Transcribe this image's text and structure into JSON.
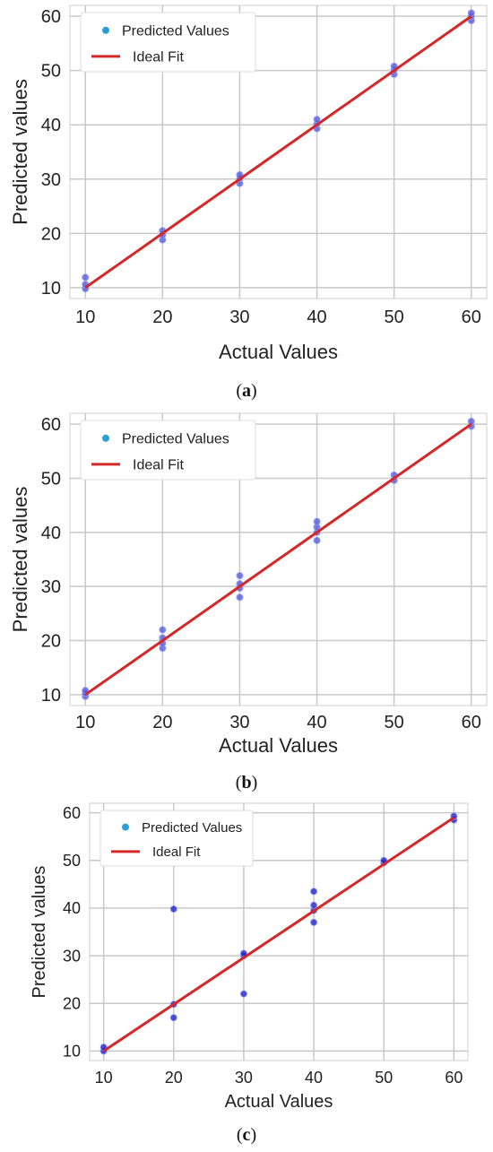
{
  "chart_data": [
    {
      "type": "scatter",
      "panel": "a",
      "caption": "a",
      "xlabel": "Actual Values",
      "ylabel": "Predicted values",
      "xlim": [
        8,
        62
      ],
      "ylim": [
        8,
        62
      ],
      "xticks": [
        10,
        20,
        30,
        40,
        50,
        60
      ],
      "yticks": [
        10,
        20,
        30,
        40,
        50,
        60
      ],
      "grid": true,
      "legend_position": "top-left",
      "series": [
        {
          "name": "Predicted Values",
          "kind": "scatter",
          "color": "#5b5bd6",
          "points": [
            [
              10,
              9.8
            ],
            [
              10,
              10.6
            ],
            [
              10,
              11.9
            ],
            [
              20,
              18.8
            ],
            [
              20,
              19.7
            ],
            [
              20,
              20.5
            ],
            [
              30,
              29.2
            ],
            [
              30,
              30.1
            ],
            [
              30,
              30.8
            ],
            [
              40,
              39.3
            ],
            [
              40,
              40.2
            ],
            [
              40,
              41.0
            ],
            [
              50,
              49.3
            ],
            [
              50,
              50.1
            ],
            [
              50,
              50.8
            ],
            [
              60,
              59.2
            ],
            [
              60,
              60.0
            ],
            [
              60,
              60.6
            ]
          ]
        },
        {
          "name": "Ideal Fit",
          "kind": "line",
          "color": "#d62728",
          "points": [
            [
              10,
              10
            ],
            [
              60,
              60
            ]
          ]
        }
      ]
    },
    {
      "type": "scatter",
      "panel": "b",
      "caption": "b",
      "xlabel": "Actual Values",
      "ylabel": "Predicted values",
      "xlim": [
        8,
        62
      ],
      "ylim": [
        8,
        62
      ],
      "xticks": [
        10,
        20,
        30,
        40,
        50,
        60
      ],
      "yticks": [
        10,
        20,
        30,
        40,
        50,
        60
      ],
      "grid": true,
      "legend_position": "top-left",
      "series": [
        {
          "name": "Predicted Values",
          "kind": "scatter",
          "color": "#5b5bd6",
          "points": [
            [
              10,
              9.7
            ],
            [
              10,
              10.3
            ],
            [
              10,
              10.8
            ],
            [
              20,
              18.6
            ],
            [
              20,
              19.5
            ],
            [
              20,
              20.5
            ],
            [
              20,
              22.0
            ],
            [
              30,
              28.0
            ],
            [
              30,
              29.7
            ],
            [
              30,
              30.5
            ],
            [
              30,
              32.0
            ],
            [
              40,
              38.5
            ],
            [
              40,
              40.0
            ],
            [
              40,
              41.0
            ],
            [
              40,
              42.0
            ],
            [
              50,
              49.6
            ],
            [
              50,
              50.6
            ],
            [
              60,
              59.6
            ],
            [
              60,
              60.5
            ]
          ]
        },
        {
          "name": "Ideal Fit",
          "kind": "line",
          "color": "#d62728",
          "points": [
            [
              10,
              10
            ],
            [
              60,
              60
            ]
          ]
        }
      ]
    },
    {
      "type": "scatter",
      "panel": "c",
      "caption": "c",
      "xlabel": "Actual Values",
      "ylabel": "Predicted values",
      "xlim": [
        8,
        62
      ],
      "ylim": [
        8,
        62
      ],
      "xticks": [
        10,
        20,
        30,
        40,
        50,
        60
      ],
      "yticks": [
        10,
        20,
        30,
        40,
        50,
        60
      ],
      "grid": true,
      "legend_position": "top-left",
      "series": [
        {
          "name": "Predicted Values",
          "kind": "scatter",
          "color": "#2323c8",
          "points": [
            [
              10,
              10.0
            ],
            [
              10,
              10.8
            ],
            [
              20,
              17.0
            ],
            [
              20,
              19.8
            ],
            [
              20,
              39.8
            ],
            [
              30,
              22.0
            ],
            [
              30,
              30.0
            ],
            [
              30,
              30.5
            ],
            [
              40,
              37.0
            ],
            [
              40,
              39.5
            ],
            [
              40,
              40.6
            ],
            [
              40,
              43.5
            ],
            [
              50,
              49.5
            ],
            [
              50,
              50.0
            ],
            [
              60,
              58.5
            ],
            [
              60,
              59.3
            ]
          ]
        },
        {
          "name": "Ideal Fit",
          "kind": "line",
          "color": "#d62728",
          "points": [
            [
              10,
              10
            ],
            [
              60,
              59
            ]
          ]
        }
      ]
    }
  ]
}
